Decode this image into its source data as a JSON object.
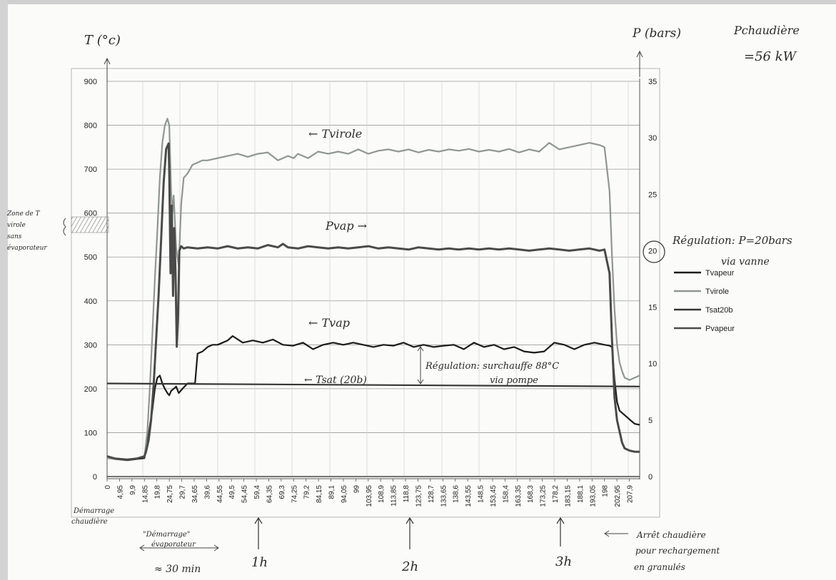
{
  "chart_data": {
    "type": "line",
    "x_ticks": [
      "0",
      "4,95",
      "9,9",
      "14,85",
      "19,8",
      "24,75",
      "29,7",
      "34,65",
      "39,6",
      "44,55",
      "49,5",
      "54,45",
      "59,4",
      "64,35",
      "69,3",
      "74,25",
      "79,2",
      "84,15",
      "89,1",
      "94,05",
      "99",
      "103,95",
      "108,9",
      "113,85",
      "118,8",
      "123,75",
      "128,7",
      "133,65",
      "138,6",
      "143,55",
      "148,5",
      "153,45",
      "158,4",
      "163,35",
      "168,3",
      "173,25",
      "178,2",
      "183,15",
      "188,1",
      "193,05",
      "198",
      "202,95",
      "207,9"
    ],
    "x_range": [
      0,
      212
    ],
    "y_left": {
      "label": "T (°c)",
      "ticks": [
        "0",
        "100",
        "200",
        "300",
        "400",
        "500",
        "600",
        "700",
        "800",
        "900"
      ],
      "range": [
        0,
        900
      ]
    },
    "y_right": {
      "label": "P (bars)",
      "ticks": [
        "0",
        "5",
        "10",
        "15",
        "20",
        "25",
        "30",
        "35"
      ],
      "range": [
        0,
        35
      ]
    },
    "grid": true,
    "legend_position": "right",
    "series": [
      {
        "name": "Tvapeur",
        "axis": "left",
        "color": "#1c1c1c",
        "x": [
          0,
          3,
          8,
          12,
          14.85,
          16,
          17,
          18,
          19,
          20,
          21,
          22,
          23,
          24,
          24.75,
          25.5,
          26.5,
          27.5,
          28.5,
          30,
          32,
          34,
          35,
          36,
          38,
          40,
          42,
          44,
          46,
          48,
          50,
          54,
          58,
          62,
          66,
          70,
          74,
          78,
          82,
          86,
          90,
          94,
          98,
          102,
          106,
          110,
          114,
          118,
          122,
          126,
          130,
          134,
          138,
          142,
          146,
          150,
          154,
          158,
          162,
          166,
          170,
          174,
          178,
          182,
          186,
          190,
          194,
          198,
          200,
          201,
          202,
          203,
          204,
          206,
          208,
          210,
          212
        ],
        "y": [
          45,
          40,
          37,
          40,
          42,
          75,
          115,
          150,
          200,
          225,
          230,
          212,
          200,
          190,
          185,
          195,
          200,
          205,
          190,
          200,
          212,
          212,
          212,
          280,
          285,
          295,
          300,
          300,
          305,
          310,
          320,
          305,
          310,
          305,
          312,
          300,
          298,
          305,
          290,
          300,
          305,
          300,
          305,
          300,
          295,
          300,
          298,
          305,
          295,
          300,
          295,
          298,
          300,
          290,
          305,
          295,
          300,
          290,
          295,
          285,
          282,
          285,
          305,
          300,
          290,
          300,
          305,
          300,
          298,
          295,
          220,
          170,
          150,
          140,
          130,
          120,
          118
        ]
      },
      {
        "name": "Tvirole",
        "axis": "left",
        "color": "#8f9790",
        "x": [
          0,
          3,
          8,
          12,
          14.85,
          16,
          17,
          18,
          19,
          20,
          21,
          22,
          23,
          24,
          24.75,
          25.5,
          26,
          26.5,
          27,
          27.5,
          28.5,
          29.5,
          30.5,
          32,
          34,
          36,
          38,
          40,
          44,
          48,
          52,
          56,
          60,
          64,
          68,
          72,
          74.25,
          76,
          80,
          84,
          88,
          92,
          96,
          100,
          104,
          108,
          112,
          116,
          120,
          124,
          128,
          132,
          136,
          140,
          144,
          148,
          152,
          156,
          160,
          164,
          168,
          172,
          176,
          180,
          184,
          188,
          192,
          196,
          198,
          200,
          201,
          202,
          203,
          204,
          205,
          206,
          208,
          210,
          212
        ],
        "y": [
          42,
          40,
          38,
          42,
          45,
          100,
          200,
          320,
          450,
          560,
          680,
          760,
          800,
          815,
          800,
          650,
          600,
          640,
          580,
          520,
          480,
          620,
          680,
          690,
          710,
          715,
          720,
          720,
          725,
          730,
          735,
          728,
          735,
          738,
          720,
          730,
          725,
          735,
          725,
          740,
          735,
          740,
          735,
          745,
          735,
          742,
          745,
          740,
          745,
          738,
          744,
          740,
          745,
          742,
          746,
          740,
          744,
          740,
          746,
          738,
          745,
          740,
          760,
          745,
          750,
          755,
          760,
          755,
          750,
          650,
          500,
          380,
          300,
          260,
          240,
          225,
          220,
          225,
          230
        ]
      },
      {
        "name": "Tsat20b",
        "axis": "left",
        "color": "#353535",
        "x": [
          0,
          212
        ],
        "y": [
          212,
          205
        ]
      },
      {
        "name": "Pvapeur",
        "axis": "right",
        "color": "#4a4a4a",
        "x": [
          0,
          3,
          8,
          12,
          14.85,
          15.5,
          16.5,
          17.5,
          18.5,
          19.5,
          20.5,
          21.5,
          22.5,
          23.5,
          24.5,
          24.75,
          25.25,
          25.75,
          26.25,
          26.75,
          27.25,
          27.75,
          28.25,
          28.75,
          29.5,
          30.5,
          32,
          36,
          40,
          44,
          48,
          52,
          56,
          60,
          64,
          68,
          70,
          72,
          76,
          80,
          84,
          88,
          92,
          96,
          100,
          104,
          108,
          112,
          116,
          120,
          124,
          128,
          132,
          136,
          140,
          144,
          148,
          152,
          156,
          160,
          164,
          168,
          172,
          176,
          180,
          184,
          188,
          192,
          196,
          198,
          200,
          201,
          202,
          203,
          204,
          205,
          206,
          208,
          210,
          212
        ],
        "y": [
          1.8,
          1.6,
          1.5,
          1.6,
          1.8,
          2.2,
          3.2,
          5,
          8,
          12,
          16,
          21,
          26,
          29,
          29.5,
          27,
          18,
          24,
          16,
          22,
          18,
          11.5,
          14,
          20,
          20.4,
          20.2,
          20.3,
          20.2,
          20.3,
          20.2,
          20.4,
          20.2,
          20.3,
          20.2,
          20.5,
          20.3,
          20.6,
          20.3,
          20.2,
          20.4,
          20.3,
          20.2,
          20.3,
          20.2,
          20.3,
          20.4,
          20.2,
          20.3,
          20.2,
          20.1,
          20.3,
          20.2,
          20.1,
          20.2,
          20.1,
          20.2,
          20.1,
          20.2,
          20.1,
          20.2,
          20.1,
          20.0,
          20.1,
          20.2,
          20.1,
          20.0,
          20.1,
          20.2,
          20.0,
          20.1,
          18,
          12,
          7,
          5,
          4,
          3,
          2.5,
          2.3,
          2.2,
          2.2
        ]
      }
    ]
  },
  "handwritten": {
    "top_right_label": "Pchaudière",
    "top_right_value": "=56 kW",
    "left_zone_lines": [
      "Zone de T",
      "virole",
      "sans",
      "évaporateur"
    ],
    "virole_label": "← Tvirole",
    "pvap_label": "Pvap →",
    "tvap_label": "← Tvap",
    "tsat_label": "← Tsat (20b)",
    "regulation_p_line1": "Régulation: P=20bars",
    "regulation_p_line2": "via vanne",
    "regulation_p_value": "20",
    "regulation_t_line1": "Régulation: surchauffe 88°C",
    "regulation_t_line2": "via pompe",
    "demarrage_chaudiere_line1": "Démarrage",
    "demarrage_chaudiere_line2": "chaudière",
    "demarrage_evap_line1": "\"Démarrage\"",
    "demarrage_evap_line2": "évaporateur",
    "duration": "≈ 30 min",
    "mark_1h": "1h",
    "mark_2h": "2h",
    "mark_3h": "3h",
    "arret_line1": "Arrêt chaudière",
    "arret_line2": "pour rechargement",
    "arret_line3": "en granulés"
  }
}
